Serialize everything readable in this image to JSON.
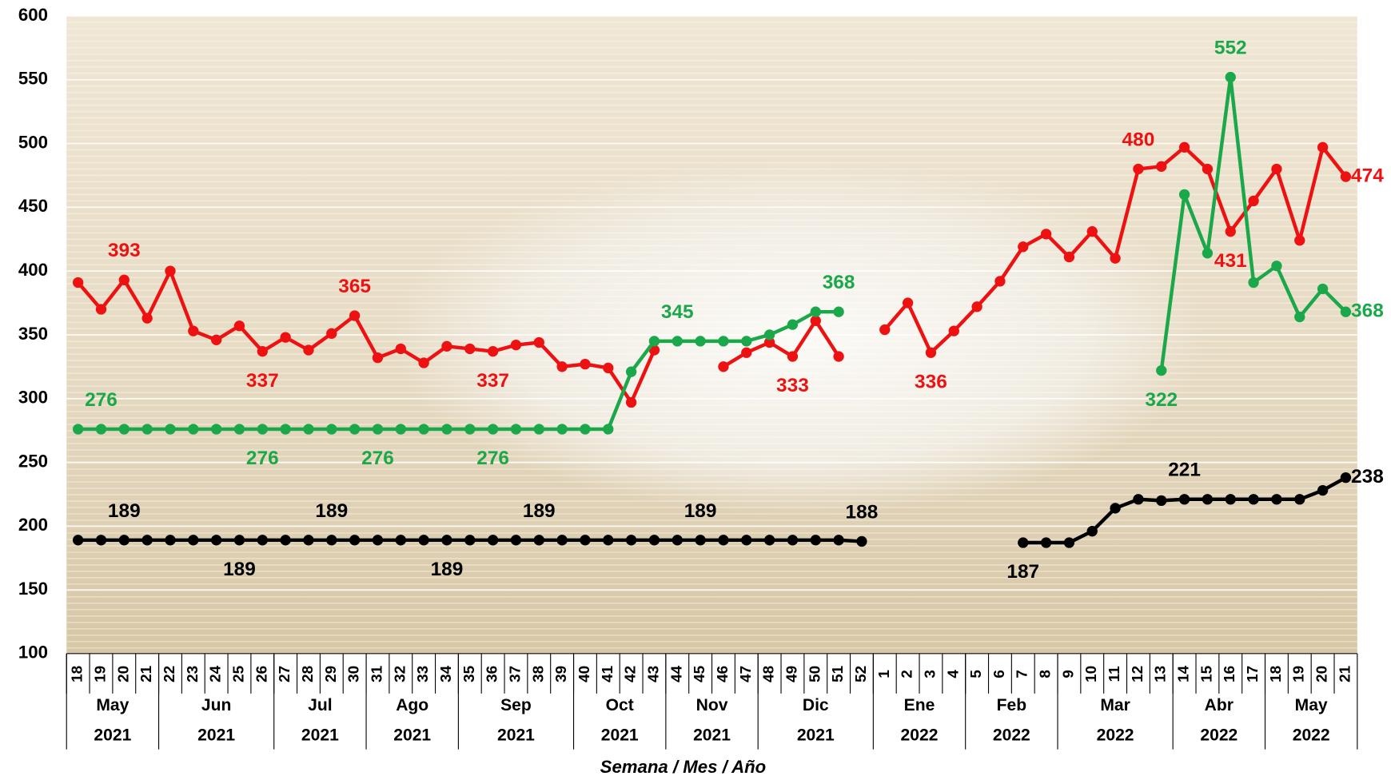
{
  "chart_data": {
    "type": "line",
    "x_label": "Semana / Mes / Año",
    "groups": [
      {
        "month": "May",
        "year": "2021",
        "weeks": [
          "18",
          "19",
          "20",
          "21"
        ]
      },
      {
        "month": "Jun",
        "year": "2021",
        "weeks": [
          "22",
          "23",
          "24",
          "25",
          "26"
        ]
      },
      {
        "month": "Jul",
        "year": "2021",
        "weeks": [
          "27",
          "28",
          "29",
          "30"
        ]
      },
      {
        "month": "Ago",
        "year": "2021",
        "weeks": [
          "31",
          "32",
          "33",
          "34"
        ]
      },
      {
        "month": "Sep",
        "year": "2021",
        "weeks": [
          "35",
          "36",
          "37",
          "38",
          "39"
        ]
      },
      {
        "month": "Oct",
        "year": "2021",
        "weeks": [
          "40",
          "41",
          "42",
          "43"
        ]
      },
      {
        "month": "Nov",
        "year": "2021",
        "weeks": [
          "44",
          "45",
          "46",
          "47"
        ]
      },
      {
        "month": "Dic",
        "year": "2021",
        "weeks": [
          "48",
          "49",
          "50",
          "51",
          "52"
        ]
      },
      {
        "month": "Ene",
        "year": "2022",
        "weeks": [
          "1",
          "2",
          "3",
          "4"
        ]
      },
      {
        "month": "Feb",
        "year": "2022",
        "weeks": [
          "5",
          "6",
          "7",
          "8"
        ]
      },
      {
        "month": "Mar",
        "year": "2022",
        "weeks": [
          "9",
          "10",
          "11",
          "12",
          "13"
        ]
      },
      {
        "month": "Abr",
        "year": "2022",
        "weeks": [
          "14",
          "15",
          "16",
          "17"
        ]
      },
      {
        "month": "May",
        "year": "2022",
        "weeks": [
          "18",
          "19",
          "20",
          "21"
        ]
      }
    ],
    "series": [
      {
        "color": "#ee1111",
        "values": [
          391,
          370,
          393,
          363,
          400,
          353,
          346,
          357,
          337,
          348,
          338,
          351,
          365,
          332,
          339,
          328,
          341,
          339,
          337,
          342,
          344,
          325,
          327,
          324,
          297,
          338,
          null,
          null,
          325,
          336,
          344,
          333,
          361,
          333,
          null,
          354,
          375,
          336,
          353,
          372,
          392,
          419,
          429,
          411,
          431,
          410,
          480,
          482,
          497,
          480,
          431,
          455,
          480,
          424,
          497,
          474
        ],
        "value_labels": [
          null,
          null,
          "393",
          null,
          null,
          null,
          null,
          null,
          "337",
          null,
          null,
          null,
          "365",
          null,
          null,
          null,
          null,
          null,
          "337",
          null,
          null,
          null,
          null,
          null,
          null,
          null,
          null,
          null,
          null,
          null,
          null,
          "333",
          null,
          null,
          null,
          null,
          null,
          "336",
          null,
          null,
          null,
          null,
          null,
          null,
          null,
          null,
          "480",
          null,
          null,
          null,
          "431",
          null,
          null,
          null,
          null,
          "474"
        ]
      },
      {
        "color": "#1aa84a",
        "values": [
          276,
          276,
          276,
          276,
          276,
          276,
          276,
          276,
          276,
          276,
          276,
          276,
          276,
          276,
          276,
          276,
          276,
          276,
          276,
          276,
          276,
          276,
          276,
          276,
          321,
          345,
          345,
          345,
          345,
          345,
          350,
          358,
          368,
          368,
          null,
          null,
          null,
          null,
          null,
          null,
          null,
          null,
          null,
          null,
          null,
          null,
          null,
          322,
          460,
          414,
          552,
          391,
          404,
          364,
          386,
          368
        ],
        "value_labels": [
          null,
          "276",
          null,
          null,
          null,
          null,
          null,
          null,
          "276",
          null,
          null,
          null,
          null,
          "276",
          null,
          null,
          null,
          null,
          "276",
          null,
          null,
          null,
          null,
          null,
          null,
          null,
          "345",
          null,
          null,
          null,
          null,
          null,
          null,
          "368",
          null,
          null,
          null,
          null,
          null,
          null,
          null,
          null,
          null,
          null,
          null,
          null,
          null,
          "322",
          null,
          null,
          "552",
          null,
          null,
          null,
          null,
          "368"
        ]
      },
      {
        "color": "#000000",
        "values": [
          189,
          189,
          189,
          189,
          189,
          189,
          189,
          189,
          189,
          189,
          189,
          189,
          189,
          189,
          189,
          189,
          189,
          189,
          189,
          189,
          189,
          189,
          189,
          189,
          189,
          189,
          189,
          189,
          189,
          189,
          189,
          189,
          189,
          189,
          188,
          null,
          null,
          null,
          null,
          null,
          null,
          187,
          187,
          187,
          196,
          214,
          221,
          220,
          221,
          221,
          221,
          221,
          221,
          221,
          228,
          238
        ],
        "value_labels": [
          null,
          null,
          "189",
          null,
          null,
          null,
          null,
          "189",
          null,
          null,
          null,
          "189",
          null,
          null,
          null,
          null,
          "189",
          null,
          null,
          null,
          "189",
          null,
          null,
          null,
          null,
          null,
          null,
          "189",
          null,
          null,
          null,
          null,
          null,
          null,
          "188",
          null,
          null,
          null,
          null,
          null,
          null,
          "187",
          null,
          null,
          null,
          null,
          null,
          null,
          "221",
          null,
          null,
          null,
          null,
          null,
          null,
          "238"
        ]
      }
    ],
    "ylim": [
      100,
      600
    ],
    "yticks": [
      100,
      150,
      200,
      250,
      300,
      350,
      400,
      450,
      500,
      550,
      600
    ],
    "grid": true
  }
}
